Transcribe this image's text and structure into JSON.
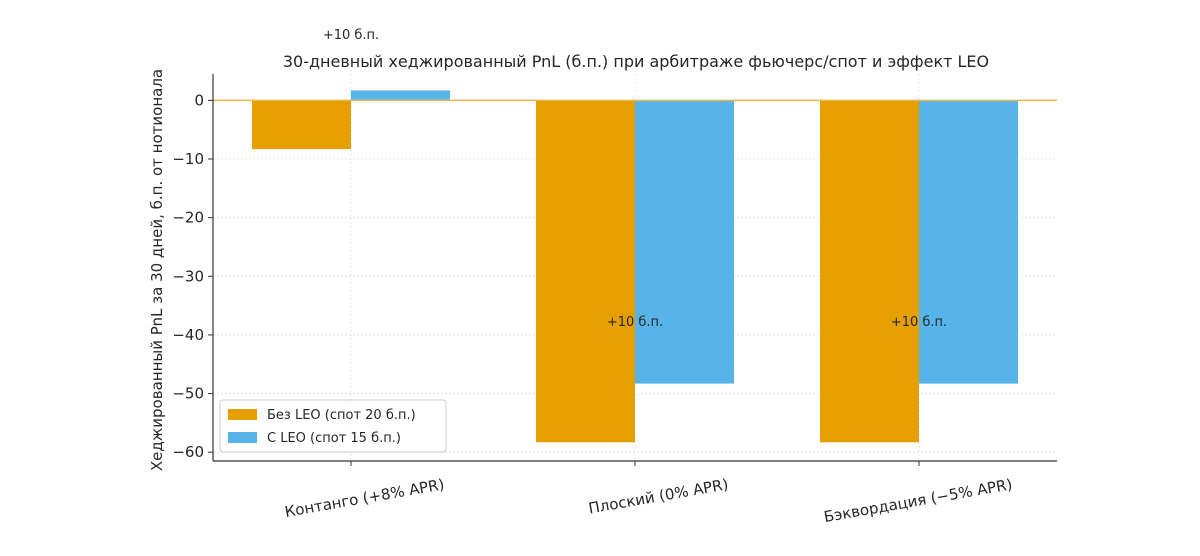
{
  "chart_data": {
    "type": "bar",
    "title": "30-дневный хеджированный PnL (б.п.) при арбитраже фьючерс/спот и эффект LEO",
    "xlabel": "",
    "ylabel": "Хеджированный PnL за 30 дней, б.п. от нотионала",
    "categories": [
      "Контанго (+8% APR)",
      "Плоский (0% APR)",
      "Бэквордация (−5% APR)"
    ],
    "series": [
      {
        "name": "Без LEO (спот 20 б.п.)",
        "values": [
          -8.3,
          -58.3,
          -58.3
        ],
        "color": "#E69F00"
      },
      {
        "name": "С LEO (спот 15 б.п.)",
        "values": [
          1.7,
          -48.3,
          -48.3
        ],
        "color": "#56B4E9"
      }
    ],
    "ylim": [
      -61.5,
      4.5
    ],
    "yticks": [
      0,
      -10,
      -20,
      -30,
      -40,
      -50,
      -60
    ],
    "ytick_labels": [
      "0",
      "−10",
      "−20",
      "−30",
      "−40",
      "−50",
      "−60"
    ],
    "grid": true,
    "zero_line_color": "#E6B84A",
    "legend_position": "lower-left",
    "annotations": [
      {
        "text": "+10 б.п.",
        "category": 0,
        "y": 10.5
      },
      {
        "text": "+10 б.п.",
        "category": 1,
        "y": -38.5
      },
      {
        "text": "+10 б.п.",
        "category": 2,
        "y": -38.5
      }
    ]
  }
}
